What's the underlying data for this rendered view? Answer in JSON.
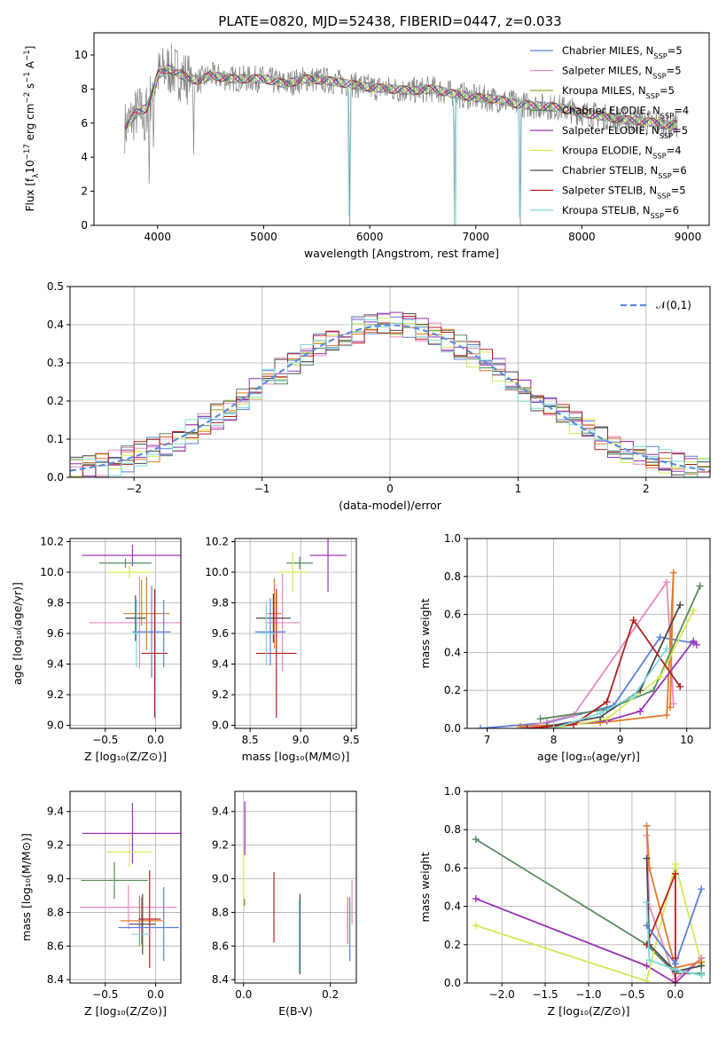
{
  "figure": {
    "title": "PLATE=0820, MJD=52438, FIBERID=0447, z=0.033"
  },
  "chart_data": [
    {
      "id": "spectrum",
      "type": "line",
      "xlabel": "wavelength [Angstrom, rest frame]",
      "ylabel_parts": [
        "Flux [f",
        "λ",
        "10",
        "−17",
        " erg cm",
        "−2",
        " s",
        "−1",
        " A",
        "−1",
        "]"
      ],
      "xlim": [
        3400,
        9200
      ],
      "ylim": [
        0,
        11.3
      ],
      "xticks": [
        4000,
        5000,
        6000,
        7000,
        8000,
        9000
      ],
      "yticks": [
        0,
        2,
        4,
        6,
        8,
        10
      ],
      "grid": false,
      "legend_position": "top-right",
      "data_color": "#808080",
      "model_color": "#7fd9d9",
      "anchors": [
        [
          3700,
          5.8
        ],
        [
          3800,
          6.6
        ],
        [
          3900,
          6.9
        ],
        [
          4000,
          8.8
        ],
        [
          4100,
          9.2
        ],
        [
          4200,
          8.9
        ],
        [
          4300,
          8.6
        ],
        [
          4400,
          8.5
        ],
        [
          4500,
          8.8
        ],
        [
          4700,
          8.6
        ],
        [
          4900,
          8.6
        ],
        [
          5000,
          8.6
        ],
        [
          5200,
          8.3
        ],
        [
          5400,
          8.6
        ],
        [
          5600,
          8.5
        ],
        [
          5800,
          8.3
        ],
        [
          6000,
          8.1
        ],
        [
          6200,
          8.0
        ],
        [
          6400,
          7.9
        ],
        [
          6600,
          8.0
        ],
        [
          6800,
          7.7
        ],
        [
          7000,
          7.5
        ],
        [
          7200,
          7.4
        ],
        [
          7400,
          7.1
        ],
        [
          7600,
          7.0
        ],
        [
          7800,
          6.9
        ],
        [
          8000,
          6.6
        ],
        [
          8200,
          6.4
        ],
        [
          8400,
          6.2
        ],
        [
          8600,
          6.1
        ],
        [
          8800,
          5.9
        ],
        [
          8900,
          5.9
        ]
      ],
      "features": [
        {
          "x": 3880,
          "depth": 3.2
        },
        {
          "x": 3920,
          "depth": 4.6
        },
        {
          "x": 3960,
          "depth": 3.5
        },
        {
          "x": 4340,
          "depth": 3.9
        },
        {
          "x": 5810,
          "depth": 8.0
        },
        {
          "x": 6800,
          "depth": 7.5
        },
        {
          "x": 7420,
          "depth": 6.8
        }
      ],
      "series": [
        {
          "name_parts": [
            "Chabrier MILES, N",
            "SSP",
            "=5"
          ],
          "color": "#5b7fdb"
        },
        {
          "name_parts": [
            "Salpeter MILES, N",
            "SSP",
            "=5"
          ],
          "color": "#e68bbf"
        },
        {
          "name_parts": [
            "Kroupa MILES, N",
            "SSP",
            "=5"
          ],
          "color": "#a0a032"
        },
        {
          "name_parts": [
            "Chabrier ELODIE, N",
            "SSP",
            "=4"
          ],
          "color": "#5a8a60"
        },
        {
          "name_parts": [
            "Salpeter ELODIE, N",
            "SSP",
            "=5"
          ],
          "color": "#9b35b8"
        },
        {
          "name_parts": [
            "Kroupa ELODIE, N",
            "SSP",
            "=4"
          ],
          "color": "#d4ea55"
        },
        {
          "name_parts": [
            "Chabrier STELIB, N",
            "SSP",
            "=6"
          ],
          "color": "#4a4a4a"
        },
        {
          "name_parts": [
            "Salpeter STELIB, N",
            "SSP",
            "=5"
          ],
          "color": "#b52020"
        },
        {
          "name_parts": [
            "Kroupa STELIB, N",
            "SSP",
            "=6"
          ],
          "color": "#7fd9d9"
        }
      ]
    },
    {
      "id": "residuals",
      "type": "line",
      "xlabel": "(data-model)/error",
      "ylabel": "Normed distribution",
      "xlim": [
        -2.5,
        2.5
      ],
      "ylim": [
        0,
        0.5
      ],
      "xticks": [
        -2,
        -1,
        0,
        1,
        2
      ],
      "yticks": [
        0.0,
        0.1,
        0.2,
        0.3,
        0.4,
        0.5
      ],
      "grid": true,
      "legend_position": "top-right",
      "legend_label": "𝒩(0,1)",
      "bin_width": 0.1,
      "reference_color": "#5b8ee0",
      "series_colors": [
        "#5b7fdb",
        "#e68bbf",
        "#e07b2a",
        "#5a8a60",
        "#9b35b8",
        "#d4ea55",
        "#4a4a4a",
        "#b52020",
        "#7fd9d9"
      ]
    },
    {
      "id": "age-vs-Z",
      "type": "scatter",
      "xlabel": "Z [log₁₀(Z/Z⊙)]",
      "ylabel": "age  [log₁₀(age/yr)]",
      "xlim": [
        -0.85,
        0.25
      ],
      "ylim": [
        8.98,
        10.22
      ],
      "xticks": [
        -0.5,
        0.0
      ],
      "yticks": [
        9.0,
        9.2,
        9.4,
        9.6,
        9.8,
        10.0,
        10.2
      ],
      "grid": true,
      "points": [
        {
          "color": "#9b35b8",
          "x": -0.23,
          "xerr": 0.5,
          "y": 10.11,
          "yerr": 0.07
        },
        {
          "color": "#5a8a60",
          "x": -0.3,
          "xerr": 0.26,
          "y": 10.06,
          "yerr": 0.03
        },
        {
          "color": "#d4ea55",
          "x": -0.26,
          "xerr": 0.23,
          "y": 10.0,
          "yerr": 0.04
        },
        {
          "color": "#e68bbf",
          "x": -0.16,
          "xerr": 0.5,
          "y": 9.67,
          "yerr": 0.3
        },
        {
          "color": "#a0a032",
          "x": -0.14,
          "xerr": 0.01,
          "y": 9.8,
          "yerr": 0.15
        },
        {
          "color": "#e07b2a",
          "x": -0.09,
          "xerr": 0.23,
          "y": 9.73,
          "yerr": 0.24
        },
        {
          "color": "#4a4a4a",
          "x": -0.2,
          "xerr": 0.1,
          "y": 9.7,
          "yerr": 0.15
        },
        {
          "color": "#b52020",
          "x": -0.01,
          "xerr": 0.13,
          "y": 9.47,
          "yerr": 0.42
        },
        {
          "color": "#5b7fdb",
          "x": -0.04,
          "xerr": 0.19,
          "y": 9.61,
          "yerr": 0.3
        },
        {
          "color": "#7fd9d9",
          "x": -0.19,
          "xerr": 0.04,
          "y": 9.6,
          "yerr": 0.22
        },
        {
          "color": "#5b7fdb",
          "x": 0.08,
          "xerr": 0.0,
          "y": 9.6,
          "yerr": 0.22
        }
      ]
    },
    {
      "id": "age-vs-mass",
      "type": "scatter",
      "xlabel": "mass [log₁₀(M/M⊙)]",
      "ylabel": "",
      "xlim": [
        8.35,
        9.55
      ],
      "ylim": [
        8.98,
        10.22
      ],
      "xticks": [
        8.5,
        9.0,
        9.5
      ],
      "yticks": [
        9.0,
        9.2,
        9.4,
        9.6,
        9.8,
        10.0,
        10.2
      ],
      "grid": true,
      "points": [
        {
          "color": "#9b35b8",
          "x": 9.27,
          "xerr": 0.18,
          "y": 10.11,
          "yerr": 0.24
        },
        {
          "color": "#5a8a60",
          "x": 8.99,
          "xerr": 0.13,
          "y": 10.06,
          "yerr": 0.04
        },
        {
          "color": "#d4ea55",
          "x": 8.92,
          "xerr": 0.15,
          "y": 10.0,
          "yerr": 0.13
        },
        {
          "color": "#e68bbf",
          "x": 8.82,
          "xerr": 0.17,
          "y": 9.67,
          "yerr": 0.32
        },
        {
          "color": "#a0a032",
          "x": 8.74,
          "xerr": 0.02,
          "y": 9.8,
          "yerr": 0.15
        },
        {
          "color": "#e07b2a",
          "x": 8.74,
          "xerr": 0.07,
          "y": 9.73,
          "yerr": 0.23
        },
        {
          "color": "#4a4a4a",
          "x": 8.73,
          "xerr": 0.17,
          "y": 9.7,
          "yerr": 0.16
        },
        {
          "color": "#b52020",
          "x": 8.76,
          "xerr": 0.2,
          "y": 9.47,
          "yerr": 0.42
        },
        {
          "color": "#5b7fdb",
          "x": 8.7,
          "xerr": 0.15,
          "y": 9.61,
          "yerr": 0.22
        },
        {
          "color": "#7fd9d9",
          "x": 8.66,
          "xerr": 0.08,
          "y": 9.6,
          "yerr": 0.21
        }
      ]
    },
    {
      "id": "massweight-vs-age",
      "type": "line",
      "xlabel": "age  [log₁₀(age/yr)]",
      "ylabel": "mass weight",
      "xlim": [
        6.7,
        10.35
      ],
      "ylim": [
        0,
        1.0
      ],
      "xticks": [
        7,
        8,
        9,
        10
      ],
      "yticks": [
        0.0,
        0.2,
        0.4,
        0.6,
        0.8,
        1.0
      ],
      "grid": true,
      "series": [
        {
          "color": "#5b7fdb",
          "points": [
            [
              6.9,
              0.0
            ],
            [
              7.9,
              0.03
            ],
            [
              8.9,
              0.12
            ],
            [
              9.6,
              0.48
            ],
            [
              10.1,
              0.45
            ]
          ]
        },
        {
          "color": "#e68bbf",
          "points": [
            [
              7.5,
              0.0
            ],
            [
              8.3,
              0.07
            ],
            [
              9.7,
              0.77
            ],
            [
              9.8,
              0.13
            ]
          ]
        },
        {
          "color": "#e07b2a",
          "points": [
            [
              7.5,
              0.01
            ],
            [
              8.7,
              0.03
            ],
            [
              9.7,
              0.07
            ],
            [
              9.8,
              0.82
            ],
            [
              9.75,
              0.11
            ]
          ]
        },
        {
          "color": "#5a8a60",
          "points": [
            [
              7.8,
              0.05
            ],
            [
              8.8,
              0.1
            ],
            [
              9.5,
              0.2
            ],
            [
              10.2,
              0.75
            ]
          ]
        },
        {
          "color": "#9b35b8",
          "points": [
            [
              7.6,
              0.0
            ],
            [
              8.8,
              0.04
            ],
            [
              9.3,
              0.09
            ],
            [
              10.1,
              0.46
            ],
            [
              10.15,
              0.44
            ]
          ]
        },
        {
          "color": "#d4ea55",
          "points": [
            [
              8.0,
              0.0
            ],
            [
              8.8,
              0.05
            ],
            [
              9.6,
              0.27
            ],
            [
              10.1,
              0.62
            ]
          ]
        },
        {
          "color": "#4a4a4a",
          "points": [
            [
              7.9,
              0.01
            ],
            [
              8.7,
              0.06
            ],
            [
              9.3,
              0.2
            ],
            [
              9.9,
              0.65
            ]
          ]
        },
        {
          "color": "#b52020",
          "points": [
            [
              7.6,
              0.0
            ],
            [
              8.3,
              0.02
            ],
            [
              8.8,
              0.14
            ],
            [
              9.2,
              0.57
            ],
            [
              9.9,
              0.22
            ]
          ]
        },
        {
          "color": "#7fd9d9",
          "points": [
            [
              8.0,
              0.0
            ],
            [
              8.7,
              0.08
            ],
            [
              9.2,
              0.17
            ],
            [
              9.7,
              0.42
            ]
          ]
        }
      ]
    },
    {
      "id": "mass-vs-Z",
      "type": "scatter",
      "xlabel": "Z [log₁₀(Z/Z⊙)]",
      "ylabel": "mass [log₁₀(M/M⊙)]",
      "xlim": [
        -0.85,
        0.25
      ],
      "ylim": [
        8.38,
        9.52
      ],
      "xticks": [
        -0.5,
        0.0
      ],
      "yticks": [
        8.4,
        8.6,
        8.8,
        9.0,
        9.2,
        9.4
      ],
      "grid": true,
      "points": [
        {
          "color": "#9b35b8",
          "x": -0.23,
          "xerr": 0.5,
          "y": 9.27,
          "yerr": 0.18
        },
        {
          "color": "#5a8a60",
          "x": -0.41,
          "xerr": 0.33,
          "y": 8.99,
          "yerr": 0.11
        },
        {
          "color": "#d4ea55",
          "x": -0.26,
          "xerr": 0.23,
          "y": 9.16,
          "yerr": 0.09
        },
        {
          "color": "#e68bbf",
          "x": -0.27,
          "xerr": 0.48,
          "y": 8.83,
          "yerr": 0.13
        },
        {
          "color": "#a0a032",
          "x": -0.16,
          "xerr": 0.01,
          "y": 8.75,
          "yerr": 0.15
        },
        {
          "color": "#e07b2a",
          "x": -0.14,
          "xerr": 0.21,
          "y": 8.75,
          "yerr": 0.14
        },
        {
          "color": "#4a4a4a",
          "x": -0.13,
          "xerr": 0.13,
          "y": 8.73,
          "yerr": 0.18
        },
        {
          "color": "#b52020",
          "x": -0.06,
          "xerr": 0.11,
          "y": 8.76,
          "yerr": 0.29
        },
        {
          "color": "#5b7fdb",
          "x": -0.07,
          "xerr": 0.3,
          "y": 8.71,
          "yerr": 0.0
        },
        {
          "color": "#7fd9d9",
          "x": -0.14,
          "xerr": 0.1,
          "y": 8.67,
          "yerr": 0.0
        },
        {
          "color": "#5b7fdb",
          "x": 0.08,
          "xerr": 0.0,
          "y": 8.73,
          "yerr": 0.22
        }
      ]
    },
    {
      "id": "mass-vs-ebv",
      "type": "scatter",
      "xlabel": "E(B-V)",
      "ylabel": "",
      "xlim": [
        -0.02,
        0.26
      ],
      "ylim": [
        8.38,
        9.52
      ],
      "xticks": [
        0.0,
        0.2
      ],
      "yticks": [
        8.4,
        8.6,
        8.8,
        9.0,
        9.2,
        9.4
      ],
      "grid": true,
      "points": [
        {
          "color": "#9b35b8",
          "x": 0.003,
          "y": 9.3,
          "yerr": 0.16
        },
        {
          "color": "#d4ea55",
          "x": 0.0,
          "y": 9.0,
          "yerr": 0.17
        },
        {
          "color": "#5a8a60",
          "x": 0.002,
          "y": 8.86,
          "yerr": 0.02
        },
        {
          "color": "#b52020",
          "x": 0.07,
          "y": 8.83,
          "yerr": 0.21
        },
        {
          "color": "#4a4a4a",
          "x": 0.13,
          "y": 8.67,
          "yerr": 0.24
        },
        {
          "color": "#7fd9d9",
          "x": 0.128,
          "y": 8.66,
          "yerr": 0.22
        },
        {
          "color": "#e07b2a",
          "x": 0.24,
          "y": 8.75,
          "yerr": 0.14
        },
        {
          "color": "#e68bbf",
          "x": 0.25,
          "y": 8.86,
          "yerr": 0.13
        },
        {
          "color": "#5b7fdb",
          "x": 0.245,
          "y": 8.7,
          "yerr": 0.19
        }
      ]
    },
    {
      "id": "massweight-vs-Z",
      "type": "line",
      "xlabel": "Z [log₁₀(Z/Z⊙)]",
      "ylabel": "mass weight",
      "xlim": [
        -2.4,
        0.4
      ],
      "ylim": [
        0,
        1.0
      ],
      "xticks": [
        -2.0,
        -1.5,
        -1.0,
        -0.5,
        0.0
      ],
      "yticks": [
        0.0,
        0.2,
        0.4,
        0.6,
        0.8,
        1.0
      ],
      "grid": true,
      "series": [
        {
          "color": "#5a8a60",
          "points": [
            [
              -2.3,
              0.75
            ],
            [
              -0.33,
              0.2
            ],
            [
              0.0,
              0.05
            ],
            [
              0.3,
              0.05
            ]
          ]
        },
        {
          "color": "#9b35b8",
          "points": [
            [
              -2.3,
              0.44
            ],
            [
              -0.33,
              0.09
            ],
            [
              0.0,
              0.0
            ],
            [
              0.3,
              0.13
            ]
          ]
        },
        {
          "color": "#d4ea55",
          "points": [
            [
              -2.3,
              0.3
            ],
            [
              -0.33,
              0.01
            ],
            [
              0.0,
              0.62
            ],
            [
              0.3,
              0.1
            ]
          ]
        },
        {
          "color": "#e68bbf",
          "points": [
            [
              -0.33,
              0.77
            ],
            [
              -0.3,
              0.4
            ],
            [
              0.0,
              0.02
            ],
            [
              0.3,
              0.13
            ]
          ]
        },
        {
          "color": "#e07b2a",
          "points": [
            [
              -0.33,
              0.82
            ],
            [
              -0.3,
              0.6
            ],
            [
              0.0,
              0.08
            ],
            [
              0.3,
              0.11
            ]
          ]
        },
        {
          "color": "#4a4a4a",
          "points": [
            [
              -0.33,
              0.65
            ],
            [
              -0.3,
              0.2
            ],
            [
              0.0,
              0.06
            ],
            [
              0.3,
              0.09
            ]
          ]
        },
        {
          "color": "#b52020",
          "points": [
            [
              -0.33,
              0.2
            ],
            [
              0.0,
              0.57
            ],
            [
              0.0,
              0.13
            ],
            [
              0.0,
              0.0
            ]
          ]
        },
        {
          "color": "#7fd9d9",
          "points": [
            [
              -0.33,
              0.42
            ],
            [
              -0.3,
              0.12
            ],
            [
              0.0,
              0.07
            ],
            [
              0.3,
              0.04
            ]
          ]
        },
        {
          "color": "#5b7fdb",
          "points": [
            [
              -0.33,
              0.3
            ],
            [
              0.0,
              0.1
            ],
            [
              0.3,
              0.49
            ]
          ]
        }
      ]
    }
  ]
}
